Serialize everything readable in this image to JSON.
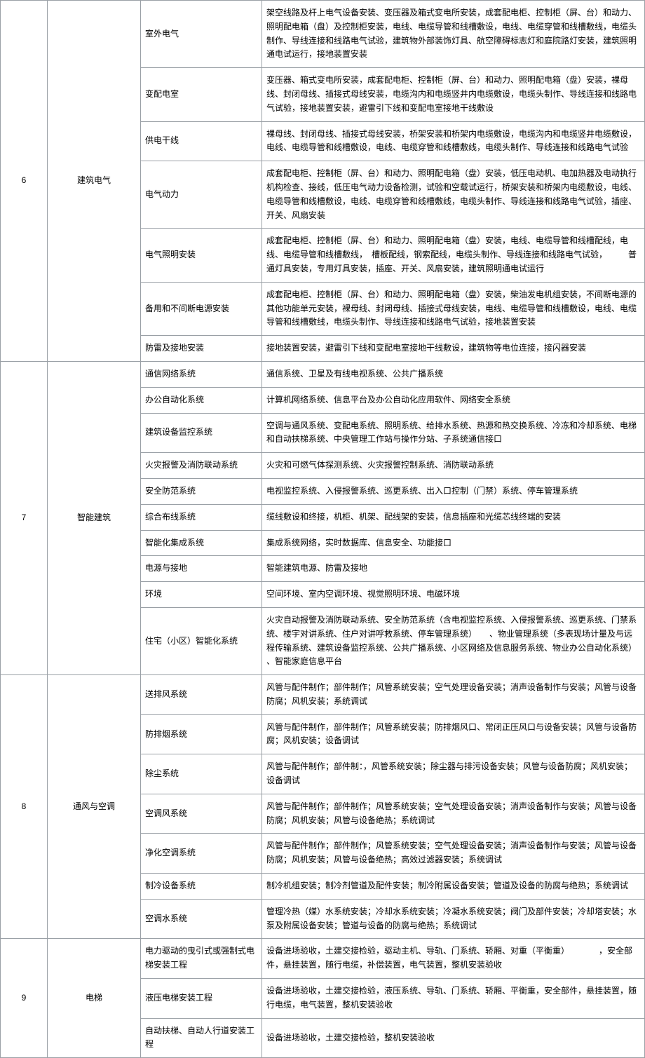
{
  "sections": [
    {
      "num": "6",
      "category": "建筑电气",
      "rows": [
        {
          "sub": "室外电气",
          "desc": "架空线路及杆上电气设备安装、变压器及箱式变电所安装，成套配电柜、控制柜（屏、台）和动力、照明配电箱（盘）及控制柜安装，电线、电缆导管和线槽敷设，电线、电缆穿管和线槽敷线，电缆头制作、导线连接和线路电气试验，建筑物外部装饰灯具、航空障碍标志灯和庭院路灯安装，建筑照明通电试运行，接地装置安装"
        },
        {
          "sub": "变配电室",
          "desc": "变压器、箱式变电所安装，成套配电柜、控制柜（屏、台）和动力、照明配电箱（盘）安装，裸母线、封闭母线、插接式母线安装，电缆沟内和电缆竖井内电缆敷设，电缆头制作、导线连接和线路电气试验，接地装置安装，避雷引下线和变配电室接地干线敷设"
        },
        {
          "sub": "供电干线",
          "desc": "裸母线、封闭母线、插接式母线安装，桥架安装和桥架内电缆敷设，电缆沟内和电缆竖井电缆敷设，电线、电缆导管和线槽敷设，电线、电缆穿管和线槽敷线，电缆头制作、导线连接和线路电气试验"
        },
        {
          "sub": "电气动力",
          "desc": "成套配电柜、控制柜（屏、台）和动力、照明配电箱（盘）安装，低压电动机、电加热器及电动执行机构检查、接线，低压电气动力设备检测，试验和空载试运行，桥架安装和桥架内电缆敷设，电线、电缆导管和线槽敷设，电线、电缆穿管和线槽敷线，电缆头制作、导线连接和线路电气试验，插座、开关、风扇安装"
        },
        {
          "sub": "电气照明安装",
          "desc": "成套配电柜、控制柜（屏、台）和动力、照明配电箱（盘）安装，电线、电缆导管和线槽配线，电线、电缆导管和线槽敷线，　槽板配线，钢索配线，电缆头制作、导线连接和线路电气试验，　　　普通灯具安装，专用灯具安装，插座、开关、风扇安装，建筑照明通电试运行"
        },
        {
          "sub": "备用和不间断电源安装",
          "desc": "成套配电柜、控制柜（屏、台）和动力、照明配电箱（盘）安装，柴油发电机组安装，不间断电源的其他功能单元安装，裸母线、封闭母线、插接式母线安装，电线、电缆导管和线槽敷设，电线、电缆导管和线槽敷线，电缆头制作、导线连接和线路电气试验，接地装置安装"
        },
        {
          "sub": "防雷及接地安装",
          "desc": "接地装置安装，避雷引下线和变配电室接地干线敷设，建筑物等电位连接，接闪器安装"
        }
      ]
    },
    {
      "num": "7",
      "category": "智能建筑",
      "rows": [
        {
          "sub": "通信网络系统",
          "desc": "通信系统、卫星及有线电视系统、公共广播系统"
        },
        {
          "sub": "办公自动化系统",
          "desc": "计算机网络系统、信息平台及办公自动化应用软件、网络安全系统"
        },
        {
          "sub": "建筑设备监控系统",
          "desc": "空调与通风系统、变配电系统、照明系统、给排水系统、热源和热交换系统、冷冻和冷却系统、电梯和自动扶梯系统、中央管理工作站与操作分站、子系统通信接口"
        },
        {
          "sub": "火灾报警及消防联动系统",
          "desc": "火灾和可燃气体探测系统、火灾报警控制系统、消防联动系统"
        },
        {
          "sub": "安全防范系统",
          "desc": "电视监控系统、入侵报警系统、巡更系统、出入口控制（门禁）系统、停车管理系统"
        },
        {
          "sub": "综合布线系统",
          "desc": "缆线敷设和终接，机柜、机架、配线架的安装，信息插座和光缆芯线终端的安装"
        },
        {
          "sub": "智能化集成系统",
          "desc": "集成系统网络，实时数据库、信息安全、功能接口"
        },
        {
          "sub": "电源与接地",
          "desc": "智能建筑电源、防雷及接地"
        },
        {
          "sub": "环境",
          "desc": "空间环境、室内空调环境、视觉照明环境、电磁环境"
        },
        {
          "sub": "住宅（小区）智能化系统",
          "desc": "火灾自动报警及消防联动系统、安全防范系统（含电视监控系统、入侵报警系统、巡更系统、门禁系统、楼宇对讲系统、住户对讲呼救系统、停车管理系统）　　、物业管理系统（多表现场计量及与远程传输系统、建筑设备监控系统、公共广播系统、小区网络及信息服务系统、物业办公自动化系统）　　　、智能家庭信息平台"
        }
      ]
    },
    {
      "num": "8",
      "category": "通风与空调",
      "rows": [
        {
          "sub": "送排风系统",
          "desc": "风管与配件制作；部件制作；风管系统安装；空气处理设备安装；消声设备制作与安装；风管与设备防腐；风机安装；系统调试"
        },
        {
          "sub": "防排烟系统",
          "desc": "风管与配件制作，部件制作；风管系统安装；防排烟风口、常闭正压风口与设备安装；风管与设备防腐；风机安装；设备调试"
        },
        {
          "sub": "除尘系统",
          "desc": "风管与配件制作；部件制：，风管系统安装；除尘器与排污设备安装；风管与设备防腐；风机安装；设备调试"
        },
        {
          "sub": "空调风系统",
          "desc": "风管与配件制作；部件制作；风管系统安装；空气处理设备安装；消声设备制作与安装；风管与设备防腐；风机安装；风管与设备绝热；系统调试"
        },
        {
          "sub": "净化空调系统",
          "desc": "风管与配件制作；部件制作；风管系统安装；空气处理设备安装；消声设备制作与安装；风管与设备防腐；风机安装；风管与设备绝热；高效过滤器安装；系统调试"
        },
        {
          "sub": "制冷设备系统",
          "desc": "制冷机组安装；制冷剂管道及配件安装；制冷附属设备安装；管道及设备的防腐与绝热；系统调试"
        },
        {
          "sub": "空调水系统",
          "desc": "管理冷热（媒）水系统安装；冷却水系统安装；冷凝水系统安装；阀门及部件安装；冷却塔安装；水泵及附属设备安装；管道与设备的防腐与绝热；系统调试"
        }
      ]
    },
    {
      "num": "9",
      "category": "电梯",
      "rows": [
        {
          "sub": "电力驱动的曳引式或强制式电梯安装工程",
          "desc": "设备进场验收，土建交接检验，驱动主机、导轨、门系统、轿厢、对重（平衡重）　　　　，安全部件，悬挂装置，随行电缆，补偿装置，电气装置，整机安装验收"
        },
        {
          "sub": "液压电梯安装工程",
          "desc": "设备进场验收，土建交接检验，液压系统、导轨、门系统、轿厢、平衡重，安全部件，悬挂装置，随行电缆，电气装置，整机安装验收"
        },
        {
          "sub": "自动扶梯、自动人行道安装工 程",
          "desc": "设备进场验收，土建交接检验，整机安装验收"
        }
      ]
    }
  ]
}
